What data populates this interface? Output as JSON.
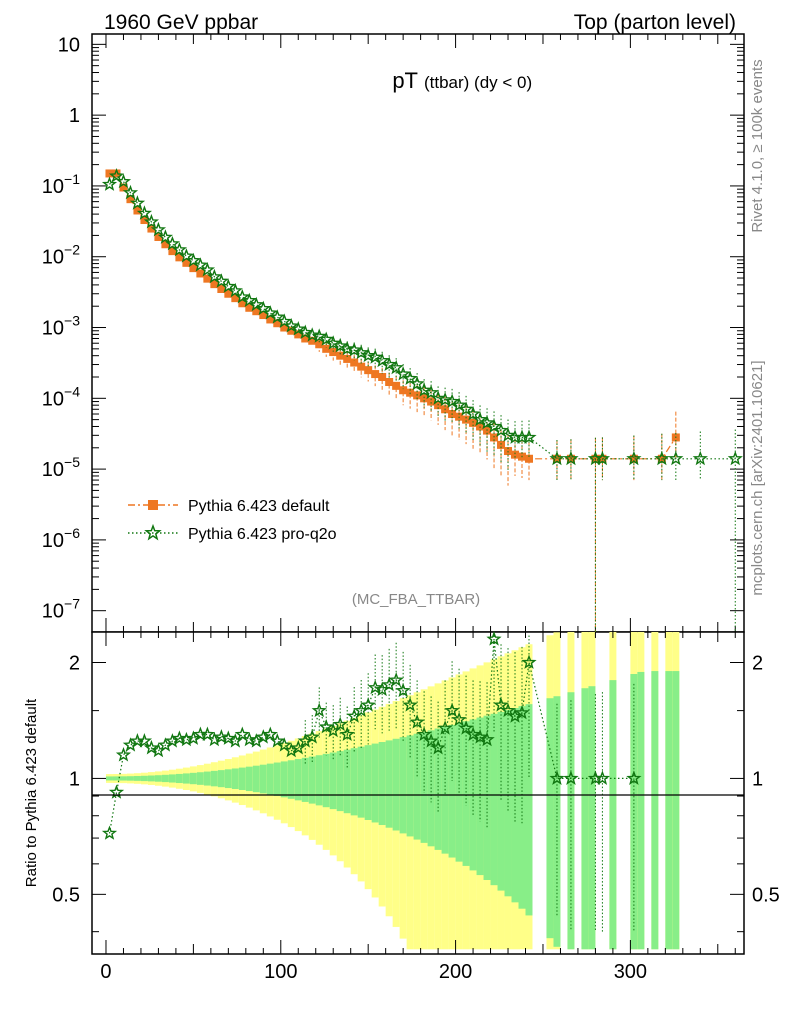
{
  "header": {
    "left": "1960 GeV ppbar",
    "right": "Top (parton level)"
  },
  "side_label_top": "Rivet 4.1.0, ≥ 100k events",
  "side_label_bottom": "mcplots.cern.ch [arXiv:2401.10621]",
  "colors": {
    "default": "#ee7722",
    "pro": "#117711",
    "band_yellow": "#ffff88",
    "band_green": "#88ee88"
  },
  "chart_data": {
    "type": "line",
    "title_main": "pT",
    "title_sub": "(ttbar)  (dy < 0)",
    "watermark": "(MC_FBA_TTBAR)",
    "xlabel": "",
    "ylabel_ratio": "Ratio to Pythia 6.423 default",
    "xlim": [
      -8,
      365
    ],
    "ylim_main": [
      5e-08,
      14
    ],
    "ylim_ratio": [
      0.35,
      2.4
    ],
    "x_ticks": [
      {
        "value": 0,
        "label": "0"
      },
      {
        "value": 100,
        "label": "100"
      },
      {
        "value": 200,
        "label": "200"
      },
      {
        "value": 300,
        "label": "300"
      }
    ],
    "y_ticks_main": [
      {
        "value": 10,
        "base": "10",
        "exp": ""
      },
      {
        "value": 1,
        "base": "1",
        "exp": ""
      },
      {
        "value": 0.1,
        "base": "10",
        "exp": "−1"
      },
      {
        "value": 0.01,
        "base": "10",
        "exp": "−2"
      },
      {
        "value": 0.001,
        "base": "10",
        "exp": "−3"
      },
      {
        "value": 0.0001,
        "base": "10",
        "exp": "−4"
      },
      {
        "value": 1e-05,
        "base": "10",
        "exp": "−5"
      },
      {
        "value": 1e-06,
        "base": "10",
        "exp": "−6"
      },
      {
        "value": 1e-07,
        "base": "10",
        "exp": "−7"
      }
    ],
    "y_ticks_ratio": [
      {
        "value": 0.5,
        "label": "0.5"
      },
      {
        "value": 1,
        "label": "1"
      },
      {
        "value": 2,
        "label": "2"
      }
    ],
    "legend": [
      {
        "name": "Pythia 6.423 default",
        "series": "default"
      },
      {
        "name": "Pythia 6.423 pro-q2o",
        "series": "pro"
      }
    ],
    "series": [
      {
        "name": "Pythia 6.423 default",
        "key": "default",
        "points": [
          [
            2,
            0.15
          ],
          [
            6,
            0.15
          ],
          [
            10,
            0.095
          ],
          [
            14,
            0.065
          ],
          [
            18,
            0.045
          ],
          [
            22,
            0.033
          ],
          [
            26,
            0.025
          ],
          [
            30,
            0.019
          ],
          [
            34,
            0.015
          ],
          [
            38,
            0.012
          ],
          [
            42,
            0.0098
          ],
          [
            46,
            0.0082
          ],
          [
            50,
            0.0069
          ],
          [
            54,
            0.0058
          ],
          [
            58,
            0.0049
          ],
          [
            62,
            0.0041
          ],
          [
            66,
            0.0035
          ],
          [
            70,
            0.003
          ],
          [
            74,
            0.0026
          ],
          [
            78,
            0.0022
          ],
          [
            82,
            0.0019
          ],
          [
            86,
            0.0017
          ],
          [
            90,
            0.0015
          ],
          [
            94,
            0.0013
          ],
          [
            98,
            0.00115
          ],
          [
            102,
            0.001
          ],
          [
            106,
            0.0009
          ],
          [
            110,
            0.0008
          ],
          [
            114,
            0.0007
          ],
          [
            118,
            0.00065
          ],
          [
            122,
            0.00058
          ],
          [
            126,
            0.0005
          ],
          [
            130,
            0.00045
          ],
          [
            134,
            0.0004
          ],
          [
            138,
            0.00036
          ],
          [
            142,
            0.00032
          ],
          [
            146,
            0.00028
          ],
          [
            150,
            0.00025
          ],
          [
            154,
            0.00022
          ],
          [
            158,
            0.0002
          ],
          [
            162,
            0.00017
          ],
          [
            166,
            0.00015
          ],
          [
            170,
            0.00013
          ],
          [
            174,
            0.00012
          ],
          [
            178,
            0.00011
          ],
          [
            182,
            0.0001
          ],
          [
            186,
            9e-05
          ],
          [
            190,
            8e-05
          ],
          [
            194,
            7e-05
          ],
          [
            198,
            6e-05
          ],
          [
            202,
            5.5e-05
          ],
          [
            206,
            5e-05
          ],
          [
            210,
            4.5e-05
          ],
          [
            214,
            4e-05
          ],
          [
            218,
            3.5e-05
          ],
          [
            222,
            2.8e-05
          ],
          [
            226,
            2.2e-05
          ],
          [
            230,
            1.8e-05
          ],
          [
            234,
            1.6e-05
          ],
          [
            238,
            1.5e-05
          ],
          [
            242,
            1.4e-05
          ],
          [
            258,
            1.4e-05
          ],
          [
            266,
            1.4e-05
          ],
          [
            280,
            1.4e-05
          ],
          [
            284,
            1.4e-05
          ],
          [
            302,
            1.4e-05
          ],
          [
            318,
            1.4e-05
          ],
          [
            326,
            2.8e-05
          ]
        ]
      },
      {
        "name": "Pythia 6.423 pro-q2o",
        "key": "pro",
        "points": [
          [
            2,
            0.105
          ],
          [
            6,
            0.138
          ],
          [
            10,
            0.115
          ],
          [
            14,
            0.08
          ],
          [
            18,
            0.057
          ],
          [
            22,
            0.041
          ],
          [
            26,
            0.031
          ],
          [
            30,
            0.024
          ],
          [
            34,
            0.0188
          ],
          [
            38,
            0.0152
          ],
          [
            42,
            0.0125
          ],
          [
            46,
            0.0102
          ],
          [
            50,
            0.0088
          ],
          [
            54,
            0.0076
          ],
          [
            58,
            0.0065
          ],
          [
            62,
            0.0052
          ],
          [
            66,
            0.0045
          ],
          [
            70,
            0.0038
          ],
          [
            74,
            0.0033
          ],
          [
            78,
            0.0027
          ],
          [
            82,
            0.0024
          ],
          [
            86,
            0.0021
          ],
          [
            90,
            0.00185
          ],
          [
            94,
            0.0016
          ],
          [
            98,
            0.0014
          ],
          [
            102,
            0.00122
          ],
          [
            106,
            0.00105
          ],
          [
            110,
            0.00095
          ],
          [
            114,
            0.00085
          ],
          [
            118,
            0.00078
          ],
          [
            122,
            0.00075
          ],
          [
            126,
            0.00068
          ],
          [
            130,
            0.0006
          ],
          [
            134,
            0.00055
          ],
          [
            138,
            0.0005
          ],
          [
            142,
            0.00048
          ],
          [
            146,
            0.00044
          ],
          [
            150,
            0.0004
          ],
          [
            154,
            0.00038
          ],
          [
            158,
            0.00034
          ],
          [
            162,
            0.0003
          ],
          [
            166,
            0.00027
          ],
          [
            170,
            0.00022
          ],
          [
            174,
            0.00019
          ],
          [
            178,
            0.00016
          ],
          [
            182,
            0.00013
          ],
          [
            186,
            0.00012
          ],
          [
            190,
            0.0001
          ],
          [
            194,
            9.5e-05
          ],
          [
            198,
            9e-05
          ],
          [
            202,
            8e-05
          ],
          [
            206,
            7e-05
          ],
          [
            210,
            6e-05
          ],
          [
            214,
            5e-05
          ],
          [
            218,
            4.5e-05
          ],
          [
            222,
            4e-05
          ],
          [
            226,
            3.5e-05
          ],
          [
            230,
            3e-05
          ],
          [
            234,
            2.8e-05
          ],
          [
            238,
            2.8e-05
          ],
          [
            242,
            2.8e-05
          ],
          [
            258,
            1.4e-05
          ],
          [
            266,
            1.4e-05
          ],
          [
            280,
            1.4e-05
          ],
          [
            284,
            1.4e-05
          ],
          [
            302,
            1.4e-05
          ],
          [
            318,
            1.4e-05
          ],
          [
            326,
            1.4e-05
          ],
          [
            340,
            1.4e-05
          ],
          [
            360,
            1.4e-05
          ]
        ]
      }
    ],
    "ratio_points": [
      [
        2,
        0.72
      ],
      [
        6,
        0.92
      ],
      [
        10,
        1.15
      ],
      [
        14,
        1.22
      ],
      [
        18,
        1.25
      ],
      [
        22,
        1.25
      ],
      [
        26,
        1.2
      ],
      [
        30,
        1.18
      ],
      [
        34,
        1.22
      ],
      [
        38,
        1.25
      ],
      [
        42,
        1.27
      ],
      [
        46,
        1.26
      ],
      [
        50,
        1.27
      ],
      [
        54,
        1.3
      ],
      [
        58,
        1.3
      ],
      [
        62,
        1.26
      ],
      [
        66,
        1.28
      ],
      [
        70,
        1.27
      ],
      [
        74,
        1.25
      ],
      [
        78,
        1.3
      ],
      [
        82,
        1.26
      ],
      [
        86,
        1.25
      ],
      [
        90,
        1.28
      ],
      [
        94,
        1.3
      ],
      [
        98,
        1.25
      ],
      [
        102,
        1.22
      ],
      [
        106,
        1.18
      ],
      [
        110,
        1.2
      ],
      [
        114,
        1.25
      ],
      [
        118,
        1.28
      ],
      [
        122,
        1.5
      ],
      [
        126,
        1.36
      ],
      [
        130,
        1.33
      ],
      [
        134,
        1.38
      ],
      [
        138,
        1.3
      ],
      [
        142,
        1.45
      ],
      [
        146,
        1.5
      ],
      [
        150,
        1.55
      ],
      [
        154,
        1.72
      ],
      [
        158,
        1.7
      ],
      [
        162,
        1.75
      ],
      [
        166,
        1.8
      ],
      [
        170,
        1.69
      ],
      [
        174,
        1.55
      ],
      [
        178,
        1.4
      ],
      [
        182,
        1.3
      ],
      [
        186,
        1.25
      ],
      [
        190,
        1.2
      ],
      [
        194,
        1.35
      ],
      [
        198,
        1.5
      ],
      [
        202,
        1.42
      ],
      [
        206,
        1.35
      ],
      [
        210,
        1.3
      ],
      [
        214,
        1.28
      ],
      [
        218,
        1.26
      ],
      [
        222,
        2.3
      ],
      [
        226,
        1.55
      ],
      [
        230,
        1.5
      ],
      [
        234,
        1.45
      ],
      [
        238,
        1.48
      ],
      [
        242,
        2.0
      ],
      [
        258,
        1.0
      ],
      [
        266,
        1.0
      ],
      [
        280,
        1.0
      ],
      [
        284,
        1.0
      ],
      [
        302,
        1.0
      ]
    ]
  }
}
